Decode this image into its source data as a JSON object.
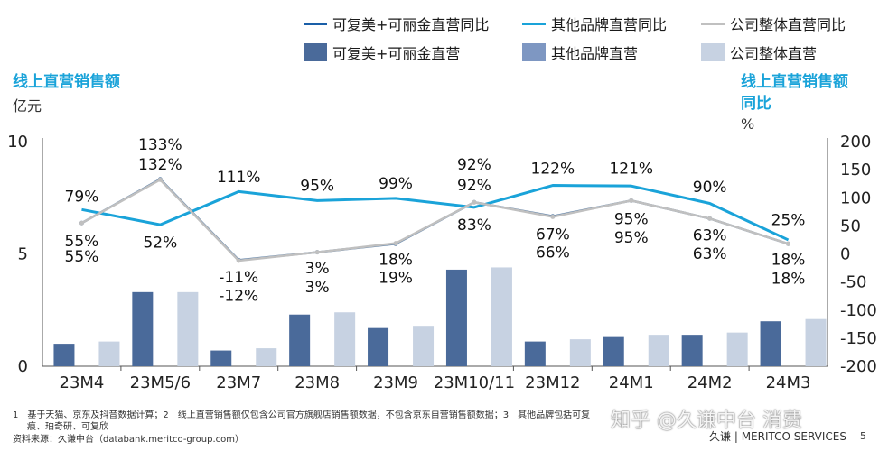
{
  "legend": [
    {
      "label": "可复美+可丽金直营同比",
      "kind": "line",
      "color": "#1a5fa8"
    },
    {
      "label": "其他品牌直营同比",
      "kind": "line",
      "color": "#1aa3d9"
    },
    {
      "label": "公司整体直营同比",
      "kind": "line",
      "color": "#c0c0c0"
    },
    {
      "label": "可复美+可丽金直营",
      "kind": "bar",
      "color": "#4a6a9a"
    },
    {
      "label": "其他品牌直营",
      "kind": "bar",
      "color": "#7e97c2"
    },
    {
      "label": "公司整体直营",
      "kind": "bar",
      "color": "#c7d2e2"
    }
  ],
  "left_axis": {
    "title": "线上直营销售额",
    "unit": "亿元"
  },
  "right_axis": {
    "title_line1": "线上直营销售额",
    "title_line2": "同比",
    "unit": "%"
  },
  "footnote_line1": "1　基于天猫、京东及抖音数据计算；2　线上直营销售额仅包含公司官方旗舰店销售额数据，不包含京东自营销售额数据；3　其他品牌包括可复",
  "footnote_line2": "痕、珀奇研、可复欣",
  "source": "资料来源：久谦中台（databank.meritco-group.com）",
  "watermark": "知乎 @久谦中台 消费",
  "brand": "久谦 | MERITCO SERVICES",
  "page_number": "5",
  "chart_data": {
    "type": "bar",
    "categories": [
      "23M4",
      "23M5/6",
      "23M7",
      "23M8",
      "23M9",
      "23M10/11",
      "23M12",
      "24M1",
      "24M2",
      "24M3"
    ],
    "y_left": {
      "min": 0,
      "max": 10,
      "ticks": [
        0,
        5,
        10
      ],
      "label": "亿元"
    },
    "y_right": {
      "min": -200,
      "max": 200,
      "ticks": [
        -200,
        -150,
        -100,
        -50,
        0,
        50,
        100,
        150,
        200
      ],
      "label": "%"
    },
    "bar_series": [
      {
        "name": "可复美+可丽金直营",
        "color": "#4a6a9a",
        "values": [
          1.0,
          3.3,
          0.7,
          2.3,
          1.7,
          4.3,
          1.1,
          1.3,
          1.4,
          2.0
        ]
      },
      {
        "name": "公司整体直营",
        "color": "#c7d2e2",
        "values": [
          1.1,
          3.3,
          0.8,
          2.4,
          1.8,
          4.4,
          1.2,
          1.4,
          1.5,
          2.1
        ]
      }
    ],
    "line_series": [
      {
        "name": "其他品牌直营同比",
        "color": "#1aa3d9",
        "values": [
          79,
          52,
          111,
          95,
          99,
          83,
          122,
          121,
          90,
          25
        ]
      },
      {
        "name": "可复美+可丽金直营同比",
        "color": "#5a7fa8",
        "values": [
          55,
          133,
          -11,
          3,
          18,
          92,
          67,
          95,
          63,
          18
        ]
      },
      {
        "name": "公司整体直营同比",
        "color": "#c0c0c0",
        "values": [
          55,
          132,
          -12,
          3,
          19,
          92,
          66,
          95,
          63,
          18
        ]
      }
    ],
    "data_labels": [
      {
        "text": "79%",
        "cat": 0,
        "y": 103
      },
      {
        "text": "55%",
        "cat": 0,
        "y": 23
      },
      {
        "text": "55%",
        "cat": 0,
        "y": -4
      },
      {
        "text": "133%",
        "cat": 1,
        "y": 195
      },
      {
        "text": "132%",
        "cat": 1,
        "y": 160
      },
      {
        "text": "52%",
        "cat": 1,
        "y": 21
      },
      {
        "text": "111%",
        "cat": 2,
        "y": 137
      },
      {
        "text": "-11%",
        "cat": 2,
        "y": -41
      },
      {
        "text": "-12%",
        "cat": 2,
        "y": -74
      },
      {
        "text": "95%",
        "cat": 3,
        "y": 122
      },
      {
        "text": "3%",
        "cat": 3,
        "y": -25
      },
      {
        "text": "3%",
        "cat": 3,
        "y": -59
      },
      {
        "text": "99%",
        "cat": 4,
        "y": 126
      },
      {
        "text": "18%",
        "cat": 4,
        "y": -10
      },
      {
        "text": "19%",
        "cat": 4,
        "y": -42
      },
      {
        "text": "92%",
        "cat": 5,
        "y": 160
      },
      {
        "text": "92%",
        "cat": 5,
        "y": 123
      },
      {
        "text": "83%",
        "cat": 5,
        "y": 52
      },
      {
        "text": "122%",
        "cat": 6,
        "y": 153
      },
      {
        "text": "67%",
        "cat": 6,
        "y": 35
      },
      {
        "text": "66%",
        "cat": 6,
        "y": 3
      },
      {
        "text": "121%",
        "cat": 7,
        "y": 153
      },
      {
        "text": "95%",
        "cat": 7,
        "y": 63
      },
      {
        "text": "95%",
        "cat": 7,
        "y": 30
      },
      {
        "text": "90%",
        "cat": 8,
        "y": 120
      },
      {
        "text": "63%",
        "cat": 8,
        "y": 34
      },
      {
        "text": "63%",
        "cat": 8,
        "y": 1
      },
      {
        "text": "25%",
        "cat": 9,
        "y": 61
      },
      {
        "text": "18%",
        "cat": 9,
        "y": -10
      },
      {
        "text": "18%",
        "cat": 9,
        "y": -43
      }
    ]
  }
}
